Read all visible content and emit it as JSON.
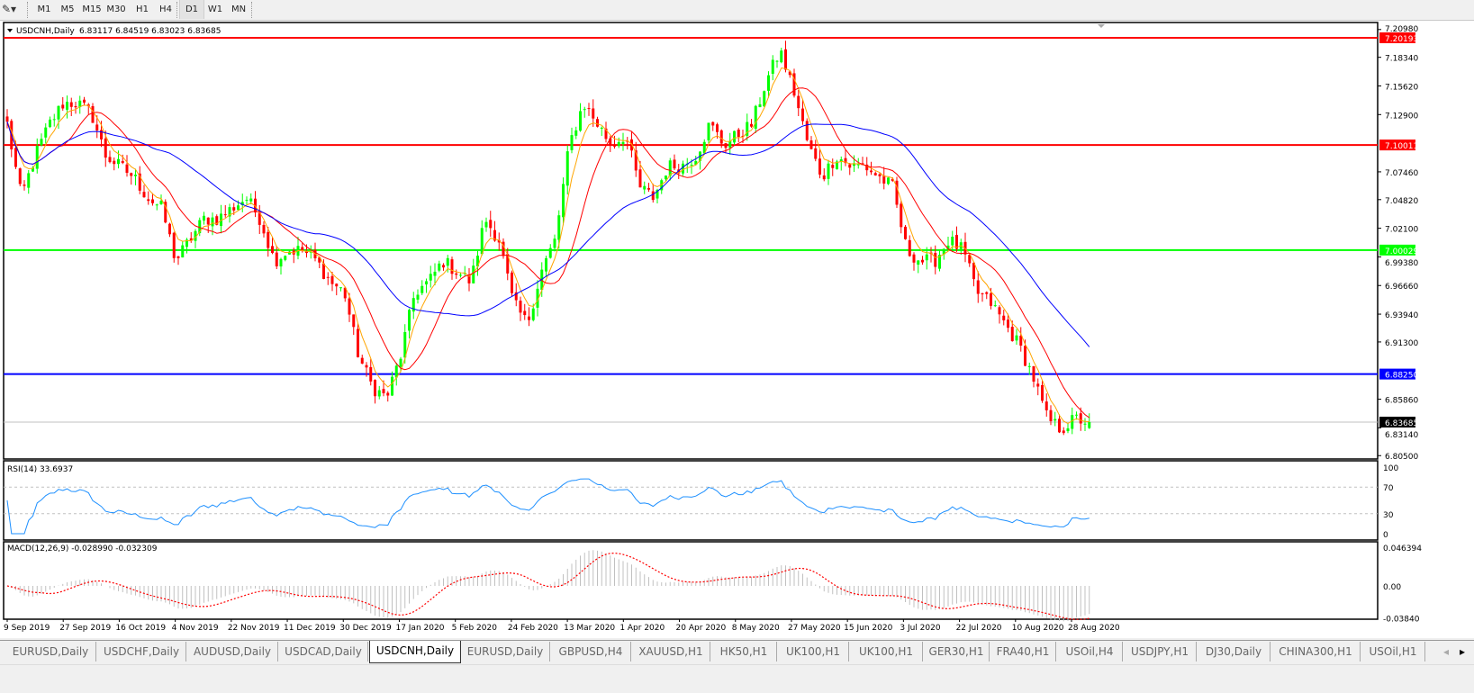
{
  "toolbar": {
    "tools_icon": "drawing-tools-icon",
    "timeframes": [
      "M1",
      "M5",
      "M15",
      "M30",
      "H1",
      "H4",
      "D1",
      "W1",
      "MN"
    ],
    "active_timeframe": "D1"
  },
  "chart": {
    "header": "USDCNH,Daily",
    "ohlc": "6.83117 6.84519 6.83023 6.83685",
    "colors": {
      "bull": "#00ff00",
      "bear": "#ff0000",
      "ma_fast": "#ffa500",
      "ma_mid": "#ff0000",
      "ma_slow": "#0000ff",
      "rsi": "#1e90ff",
      "macd_signal": "#ff0000",
      "macd_hist": "#c0c0c0"
    },
    "hlines": [
      {
        "label": "7.20193",
        "price": 7.20193,
        "color": "#ff0000"
      },
      {
        "label": "7.10011",
        "price": 7.10011,
        "color": "#ff0000"
      },
      {
        "label": "7.00029",
        "price": 7.00029,
        "color": "#00ff00"
      },
      {
        "label": "6.88250",
        "price": 6.8825,
        "color": "#0000ff"
      },
      {
        "label": "6.83685",
        "price": 6.83685,
        "color": "#000000"
      }
    ],
    "price_ticks": [
      "7.20980",
      "7.18340",
      "7.15620",
      "7.12900",
      "7.07460",
      "7.04820",
      "7.02100",
      "6.99380",
      "6.96660",
      "6.93940",
      "6.91300",
      "6.85860",
      "6.83140",
      "6.80500"
    ],
    "date_labels": [
      "9 Sep 2019",
      "27 Sep 2019",
      "16 Oct 2019",
      "4 Nov 2019",
      "22 Nov 2019",
      "11 Dec 2019",
      "30 Dec 2019",
      "17 Jan 2020",
      "5 Feb 2020",
      "24 Feb 2020",
      "13 Mar 2020",
      "1 Apr 2020",
      "20 Apr 2020",
      "8 May 2020",
      "27 May 2020",
      "15 Jun 2020",
      "3 Jul 2020",
      "22 Jul 2020",
      "10 Aug 2020",
      "28 Aug 2020"
    ],
    "rsi": {
      "label": "RSI(14) 33.6937",
      "ticks": [
        "100",
        "70",
        "30",
        "0"
      ]
    },
    "macd": {
      "label": "MACD(12,26,9) -0.028990 -0.032309",
      "ticks": [
        "0.046394",
        "0.00",
        "-0.03840"
      ]
    }
  },
  "chart_data": {
    "type": "candlestick",
    "symbol": "USDCNH",
    "timeframe": "Daily",
    "x_range": [
      "9 Sep 2019",
      "4 Sep 2020"
    ],
    "ylim": [
      6.805,
      7.2098
    ],
    "bars": 254,
    "close_samples": [
      7.12,
      7.05,
      7.09,
      7.12,
      7.14,
      7.14,
      7.13,
      7.09,
      7.08,
      7.07,
      7.05,
      7.04,
      6.99,
      7.01,
      7.03,
      7.03,
      7.04,
      7.05,
      7.03,
      6.99,
      7.0,
      7.0,
      6.99,
      6.97,
      6.96,
      6.9,
      6.87,
      6.86,
      6.9,
      6.96,
      6.97,
      6.99,
      6.98,
      6.97,
      7.03,
      7.01,
      6.95,
      6.93,
      6.98,
      7.01,
      7.1,
      7.14,
      7.12,
      7.1,
      7.11,
      7.06,
      7.05,
      7.08,
      7.08,
      7.09,
      7.12,
      7.1,
      7.11,
      7.12,
      7.16,
      7.19,
      7.15,
      7.1,
      7.07,
      7.09,
      7.08,
      7.08,
      7.07,
      7.06,
      7.0,
      6.99,
      6.99,
      7.01,
      7.0,
      6.96,
      6.95,
      6.93,
      6.91,
      6.88,
      6.84,
      6.83,
      6.84,
      6.83685
    ],
    "last": {
      "open": 6.83117,
      "high": 6.84519,
      "low": 6.83023,
      "close": 6.83685
    },
    "grid": false
  },
  "tabs": [
    "EURUSD,Daily",
    "USDCHF,Daily",
    "AUDUSD,Daily",
    "USDCAD,Daily",
    "USDCNH,Daily",
    "EURUSD,Daily",
    "GBPUSD,H4",
    "XAUUSD,H1",
    "HK50,H1",
    "UK100,H1",
    "UK100,H1",
    "GER30,H1",
    "FRA40,H1",
    "USOil,H4",
    "USDJPY,H1",
    "DJ30,Daily",
    "CHINA300,H1",
    "USOil,H1"
  ],
  "active_tab": "USDCNH,Daily"
}
